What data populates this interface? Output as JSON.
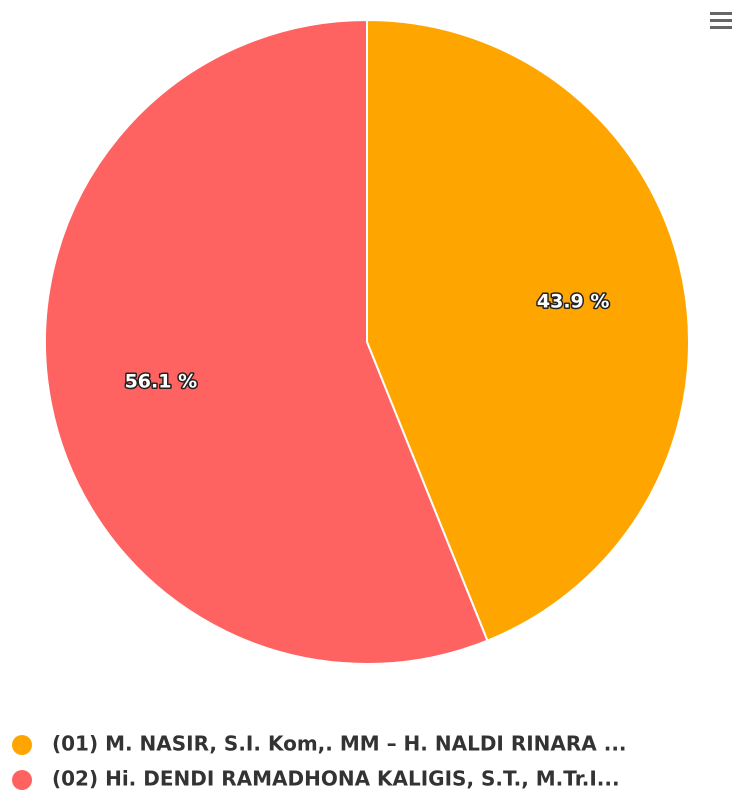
{
  "chart_data": {
    "type": "pie",
    "categories": [
      "(01) M. NASIR, S.I. Kom,. MM – H. NALDI RINARA ...",
      "(02) Hi. DENDI RAMADHONA KALIGIS, S.T., M.Tr.I..."
    ],
    "values": [
      43.9,
      56.1
    ],
    "value_labels": [
      "43.9 %",
      "56.1 %"
    ],
    "colors": [
      "#ffa500",
      "#ff6361"
    ]
  }
}
